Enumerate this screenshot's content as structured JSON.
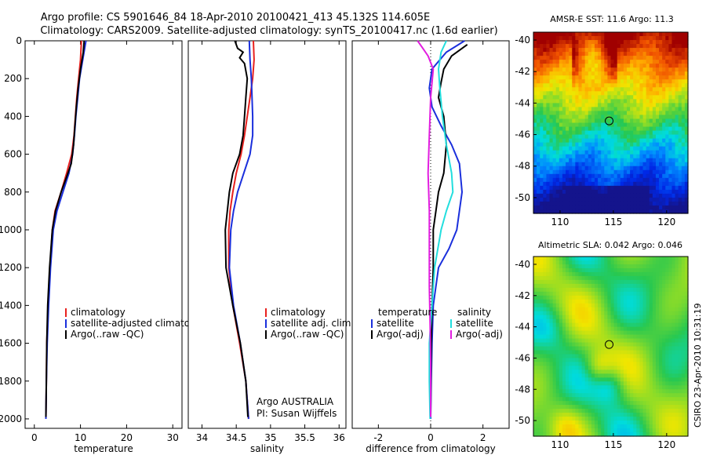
{
  "title_line1": "Argo profile: CS 5901646_84 18-Apr-2010 20100421_413 45.132S 114.605E",
  "title_line2": "Climatology: CARS2009. Satellite-adjusted climatology: synTS_20100417.nc (1.6d earlier)",
  "colors": {
    "climatology": "#e8211e",
    "satellite": "#1a2fdc",
    "argo": "#000000",
    "cyan": "#22dede",
    "magenta": "#e21ee0"
  },
  "chart_data": [
    {
      "type": "line",
      "name": "temperature",
      "xlabel": "temperature",
      "ylabel": "",
      "xlim": [
        -2,
        32
      ],
      "ylim": [
        2050,
        0
      ],
      "xticks": [
        0,
        10,
        20,
        30
      ],
      "yticks": [
        0,
        200,
        400,
        600,
        800,
        1000,
        1200,
        1400,
        1600,
        1800,
        2000
      ],
      "legend": [
        "climatology",
        "satellite-adjusted climatology",
        "Argo(..raw -QC)"
      ],
      "series": [
        {
          "name": "climatology",
          "color_key": "climatology",
          "points": [
            [
              10.2,
              0
            ],
            [
              10.0,
              100
            ],
            [
              9.6,
              200
            ],
            [
              9.2,
              300
            ],
            [
              8.9,
              400
            ],
            [
              8.6,
              500
            ],
            [
              8.1,
              600
            ],
            [
              7.0,
              700
            ],
            [
              5.8,
              800
            ],
            [
              4.5,
              900
            ],
            [
              3.9,
              1000
            ],
            [
              3.4,
              1200
            ],
            [
              3.0,
              1400
            ],
            [
              2.7,
              1600
            ],
            [
              2.6,
              1800
            ],
            [
              2.5,
              2000
            ]
          ]
        },
        {
          "name": "satellite-adjusted climatology",
          "color_key": "satellite",
          "points": [
            [
              11.2,
              0
            ],
            [
              10.5,
              100
            ],
            [
              9.8,
              200
            ],
            [
              9.4,
              300
            ],
            [
              9.0,
              400
            ],
            [
              8.7,
              500
            ],
            [
              8.3,
              600
            ],
            [
              7.5,
              700
            ],
            [
              6.2,
              800
            ],
            [
              4.9,
              900
            ],
            [
              4.1,
              1000
            ],
            [
              3.5,
              1200
            ],
            [
              3.1,
              1400
            ],
            [
              2.8,
              1600
            ],
            [
              2.6,
              1800
            ],
            [
              2.5,
              2000
            ]
          ]
        },
        {
          "name": "Argo",
          "color_key": "argo",
          "points": [
            [
              10.8,
              0
            ],
            [
              10.6,
              60
            ],
            [
              10.0,
              150
            ],
            [
              9.5,
              250
            ],
            [
              9.1,
              350
            ],
            [
              8.8,
              450
            ],
            [
              8.5,
              550
            ],
            [
              8.0,
              650
            ],
            [
              7.0,
              720
            ],
            [
              5.8,
              800
            ],
            [
              4.6,
              900
            ],
            [
              3.9,
              1000
            ],
            [
              3.3,
              1200
            ],
            [
              2.9,
              1400
            ],
            [
              2.7,
              1600
            ],
            [
              2.6,
              1800
            ],
            [
              2.5,
              1990
            ]
          ]
        }
      ]
    },
    {
      "type": "line",
      "name": "salinity",
      "xlabel": "salinity",
      "ylabel": "",
      "xlim": [
        33.8,
        36.1
      ],
      "ylim": [
        2050,
        0
      ],
      "xticks": [
        34,
        34.5,
        35,
        35.5,
        36
      ],
      "legend": [
        "climatology",
        "satellite adj. clim.",
        "Argo(..raw -QC)"
      ],
      "annotation": [
        "Argo AUSTRALIA",
        "PI: Susan Wijffels"
      ],
      "series": [
        {
          "name": "climatology",
          "color_key": "climatology",
          "points": [
            [
              34.75,
              0
            ],
            [
              34.76,
              100
            ],
            [
              34.74,
              200
            ],
            [
              34.7,
              300
            ],
            [
              34.66,
              400
            ],
            [
              34.62,
              500
            ],
            [
              34.57,
              600
            ],
            [
              34.5,
              700
            ],
            [
              34.45,
              800
            ],
            [
              34.41,
              900
            ],
            [
              34.39,
              1000
            ],
            [
              34.39,
              1200
            ],
            [
              34.45,
              1400
            ],
            [
              34.55,
              1600
            ],
            [
              34.64,
              1800
            ],
            [
              34.68,
              2000
            ]
          ]
        },
        {
          "name": "satellite adj. clim.",
          "color_key": "satellite",
          "points": [
            [
              34.69,
              0
            ],
            [
              34.7,
              100
            ],
            [
              34.72,
              200
            ],
            [
              34.73,
              300
            ],
            [
              34.74,
              400
            ],
            [
              34.74,
              500
            ],
            [
              34.7,
              600
            ],
            [
              34.61,
              700
            ],
            [
              34.52,
              800
            ],
            [
              34.46,
              900
            ],
            [
              34.42,
              1000
            ],
            [
              34.4,
              1200
            ],
            [
              34.46,
              1400
            ],
            [
              34.56,
              1600
            ],
            [
              34.64,
              1800
            ],
            [
              34.68,
              2000
            ]
          ]
        },
        {
          "name": "Argo",
          "color_key": "argo",
          "points": [
            [
              34.48,
              0
            ],
            [
              34.52,
              40
            ],
            [
              34.6,
              60
            ],
            [
              34.55,
              90
            ],
            [
              34.62,
              120
            ],
            [
              34.66,
              200
            ],
            [
              34.64,
              300
            ],
            [
              34.62,
              400
            ],
            [
              34.6,
              500
            ],
            [
              34.55,
              600
            ],
            [
              34.45,
              700
            ],
            [
              34.4,
              800
            ],
            [
              34.37,
              900
            ],
            [
              34.34,
              1000
            ],
            [
              34.35,
              1200
            ],
            [
              34.45,
              1400
            ],
            [
              34.56,
              1600
            ],
            [
              34.64,
              1800
            ],
            [
              34.67,
              1990
            ]
          ]
        }
      ]
    },
    {
      "type": "line",
      "name": "difference",
      "xlabel": "difference from climatology",
      "ylabel": "",
      "xlim": [
        -3,
        3
      ],
      "ylim": [
        2050,
        0
      ],
      "xticks": [
        -2,
        0,
        2
      ],
      "legend_left_title": "temperature",
      "legend_right_title": "salinity",
      "legend_left": [
        "satellite",
        "Argo(-adj)"
      ],
      "legend_right": [
        "satellite",
        "Argo(-adj)"
      ],
      "series": [
        {
          "name": "temperature satellite",
          "color_key": "satellite",
          "points": [
            [
              1.3,
              0
            ],
            [
              0.6,
              60
            ],
            [
              0.05,
              150
            ],
            [
              -0.05,
              250
            ],
            [
              0.05,
              350
            ],
            [
              0.4,
              450
            ],
            [
              0.8,
              550
            ],
            [
              1.1,
              650
            ],
            [
              1.2,
              800
            ],
            [
              1.0,
              1000
            ],
            [
              0.7,
              1100
            ],
            [
              0.3,
              1200
            ],
            [
              0.1,
              1400
            ],
            [
              0.05,
              1600
            ],
            [
              0.02,
              1800
            ],
            [
              0.0,
              2000
            ]
          ]
        },
        {
          "name": "temperature Argo(-adj)",
          "color_key": "argo",
          "points": [
            [
              1.4,
              20
            ],
            [
              0.8,
              80
            ],
            [
              0.5,
              150
            ],
            [
              0.4,
              220
            ],
            [
              0.3,
              300
            ],
            [
              0.5,
              400
            ],
            [
              0.6,
              550
            ],
            [
              0.5,
              700
            ],
            [
              0.3,
              800
            ],
            [
              0.2,
              900
            ],
            [
              0.1,
              1000
            ],
            [
              0.1,
              1200
            ],
            [
              0.05,
              1400
            ],
            [
              0.02,
              1600
            ],
            [
              0.01,
              1800
            ],
            [
              0.0,
              1990
            ]
          ]
        },
        {
          "name": "salinity satellite",
          "color_key": "cyan",
          "points": [
            [
              0.6,
              0
            ],
            [
              0.4,
              60
            ],
            [
              0.3,
              150
            ],
            [
              0.35,
              250
            ],
            [
              0.45,
              400
            ],
            [
              0.6,
              550
            ],
            [
              0.8,
              700
            ],
            [
              0.85,
              800
            ],
            [
              0.6,
              900
            ],
            [
              0.4,
              1000
            ],
            [
              0.15,
              1200
            ],
            [
              0.05,
              1400
            ],
            [
              -0.05,
              1600
            ],
            [
              -0.05,
              1800
            ],
            [
              -0.02,
              2000
            ]
          ]
        },
        {
          "name": "salinity Argo(-adj)",
          "color_key": "magenta",
          "points": [
            [
              -0.5,
              0
            ],
            [
              -0.3,
              40
            ],
            [
              -0.1,
              80
            ],
            [
              0.1,
              150
            ],
            [
              0.0,
              300
            ],
            [
              -0.05,
              500
            ],
            [
              -0.1,
              700
            ],
            [
              -0.05,
              900
            ],
            [
              -0.05,
              1100
            ],
            [
              -0.05,
              1300
            ],
            [
              -0.02,
              1500
            ],
            [
              0.0,
              1700
            ],
            [
              0.0,
              1990
            ]
          ]
        }
      ]
    },
    {
      "type": "heatmap",
      "name": "sst",
      "title": "AMSR-E SST: 11.6 Argo: 11.3",
      "xlim": [
        107.5,
        122
      ],
      "ylim": [
        -51,
        -39.5
      ],
      "xticks": [
        110,
        115,
        120
      ],
      "yticks": [
        -40,
        -42,
        -44,
        -46,
        -48,
        -50
      ],
      "marker": [
        114.605,
        -45.132
      ]
    },
    {
      "type": "heatmap",
      "name": "sla",
      "title": "Altimetric SLA: 0.042 Argo: 0.046",
      "xlim": [
        107.5,
        122
      ],
      "ylim": [
        -51,
        -39.5
      ],
      "xticks": [
        110,
        115,
        120
      ],
      "yticks": [
        -40,
        -42,
        -44,
        -46,
        -48,
        -50
      ],
      "marker": [
        114.605,
        -45.132
      ],
      "side_label": "CSIRO 23-Apr-2010 10:31:19"
    }
  ]
}
